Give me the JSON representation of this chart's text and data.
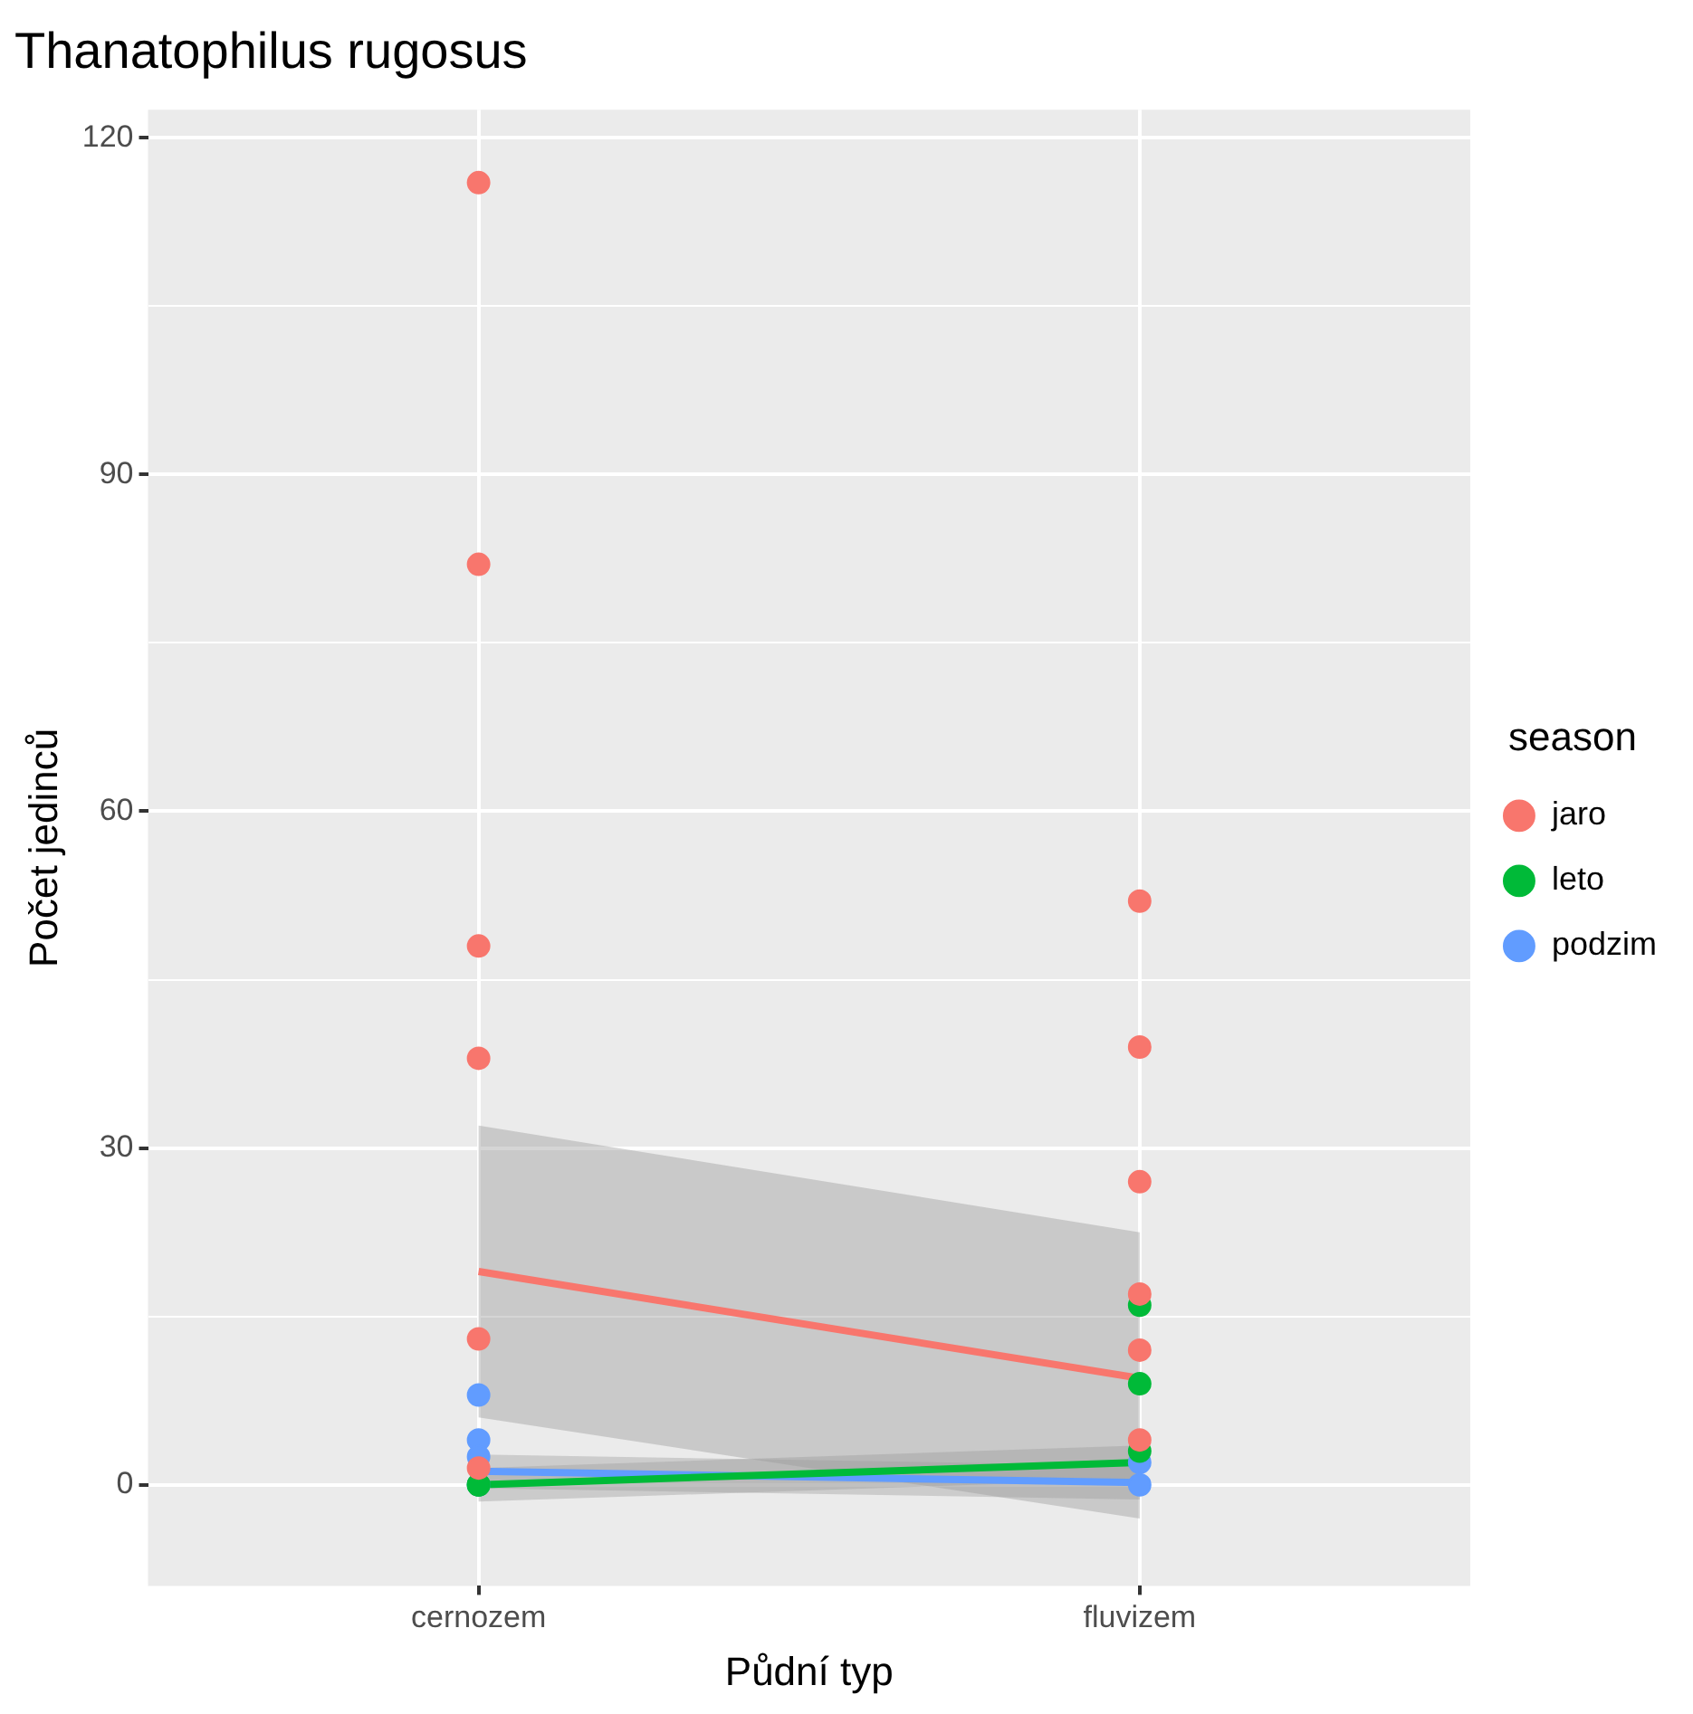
{
  "chart_data": {
    "type": "scatter",
    "title": "Thanatophilus rugosus",
    "xlabel": "Půdní typ",
    "ylabel": "Počet jedinců",
    "legend_title": "season",
    "categories": [
      "cernozem",
      "fluvizem"
    ],
    "ylim": [
      -9,
      122.5
    ],
    "yticks": [
      0,
      {
        "value": 15,
        "label": null
      },
      30,
      {
        "value": 45,
        "label": null
      },
      60,
      {
        "value": 75,
        "label": null
      },
      90,
      {
        "value": 105,
        "label": null
      },
      120
    ],
    "grid": true,
    "legend": "right",
    "marker": "circle",
    "line_style": "solid",
    "series": [
      {
        "name": "jaro",
        "color": "#f8766d",
        "x": [
          "cernozem",
          "cernozem",
          "cernozem",
          "cernozem",
          "cernozem",
          "cernozem",
          "fluvizem",
          "fluvizem",
          "fluvizem",
          "fluvizem",
          "fluvizem",
          "fluvizem"
        ],
        "values": [
          116,
          82,
          48,
          38,
          13,
          1.5,
          52,
          39,
          27,
          17,
          12,
          4
        ]
      },
      {
        "name": "leto",
        "color": "#00ba38",
        "x": [
          "cernozem",
          "cernozem",
          "fluvizem",
          "fluvizem",
          "fluvizem"
        ],
        "values": [
          0,
          0,
          16,
          9,
          3
        ]
      },
      {
        "name": "podzim",
        "color": "#619cff",
        "x": [
          "cernozem",
          "cernozem",
          "cernozem",
          "cernozem",
          "fluvizem",
          "fluvizem"
        ],
        "values": [
          8,
          4,
          2.5,
          0,
          2,
          0
        ]
      },
      {
        "type": "line",
        "marker": "none",
        "color": "#f8766d",
        "values": [
          19,
          9.5
        ],
        "lower": [
          6,
          -3
        ],
        "upper": [
          32,
          22.5
        ]
      },
      {
        "type": "line",
        "marker": "none",
        "color": "#00ba38",
        "values": [
          0,
          2
        ],
        "lower": [
          -1.5,
          0.5
        ],
        "upper": [
          1.5,
          3.5
        ]
      },
      {
        "type": "line",
        "marker": "none",
        "color": "#619cff",
        "values": [
          1.2,
          0.2
        ],
        "lower": [
          -0.3,
          -1.3
        ],
        "upper": [
          2.7,
          1.7
        ]
      }
    ]
  }
}
